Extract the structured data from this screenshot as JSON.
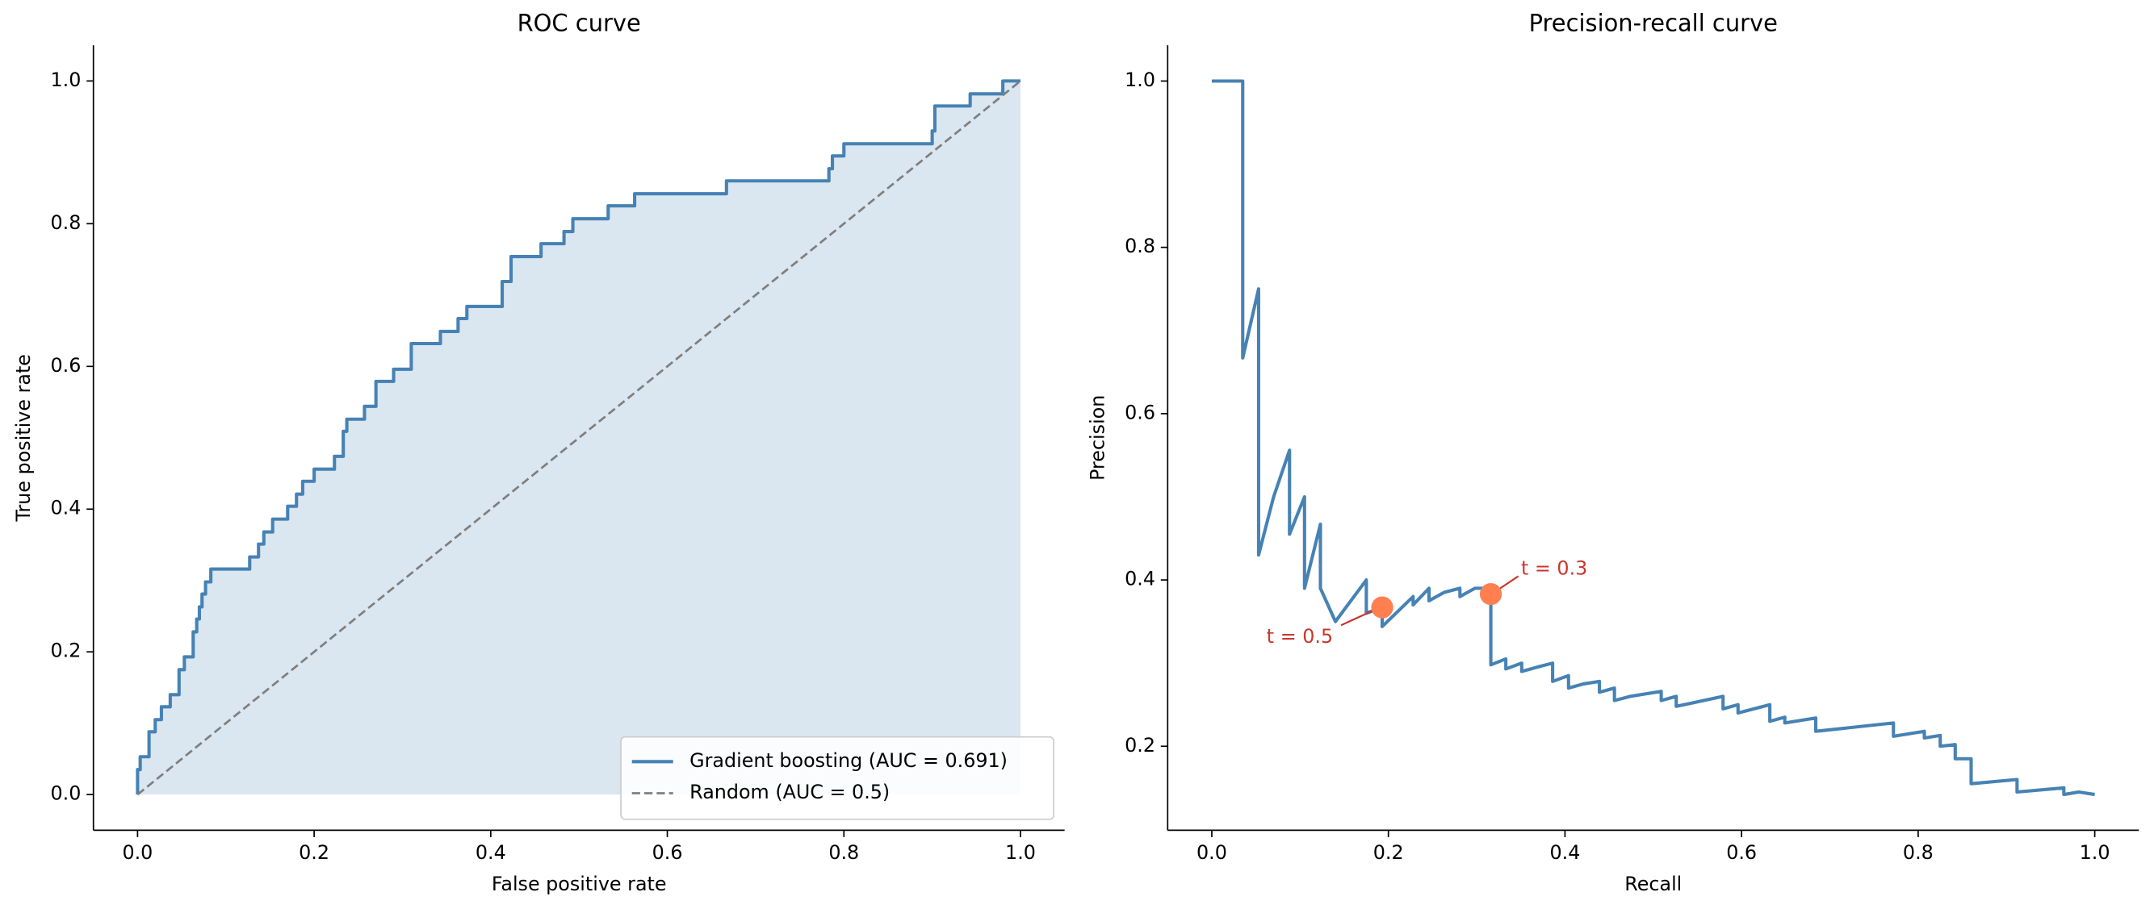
{
  "chart_data": [
    {
      "type": "line",
      "title": "ROC curve",
      "x_label": "False positive rate",
      "y_label": "True positive rate",
      "xlim": [
        -0.05,
        1.05
      ],
      "ylim": [
        -0.05,
        1.05
      ],
      "xticks": [
        {
          "value": 0,
          "label": "0.0"
        },
        0.2,
        0.4,
        0.6,
        0.8,
        {
          "value": 1,
          "label": "1.0"
        }
      ],
      "yticks": [
        {
          "value": 0,
          "label": "0.0"
        },
        0.2,
        0.4,
        0.6,
        0.8,
        {
          "value": 1,
          "label": "1.0"
        }
      ],
      "legend": "lower right",
      "series": [
        {
          "name": "Gradient boosting (AUC = 0.691)",
          "color": "#4682b4",
          "style": "solid",
          "fill": true,
          "x": [
            0,
            0,
            0.003,
            0.003,
            0.013,
            0.013,
            0.02,
            0.02,
            0.027,
            0.027,
            0.037,
            0.037,
            0.047,
            0.047,
            0.053,
            0.053,
            0.063,
            0.063,
            0.067,
            0.067,
            0.07,
            0.07,
            0.073,
            0.073,
            0.077,
            0.077,
            0.083,
            0.083,
            0.127,
            0.127,
            0.137,
            0.137,
            0.143,
            0.143,
            0.153,
            0.153,
            0.17,
            0.17,
            0.18,
            0.18,
            0.187,
            0.187,
            0.2,
            0.2,
            0.223,
            0.223,
            0.233,
            0.233,
            0.237,
            0.237,
            0.257,
            0.257,
            0.27,
            0.27,
            0.29,
            0.29,
            0.31,
            0.31,
            0.343,
            0.343,
            0.363,
            0.363,
            0.373,
            0.373,
            0.413,
            0.413,
            0.423,
            0.423,
            0.457,
            0.457,
            0.483,
            0.483,
            0.493,
            0.493,
            0.533,
            0.533,
            0.563,
            0.563,
            0.667,
            0.667,
            0.783,
            0.783,
            0.787,
            0.787,
            0.8,
            0.8,
            0.9,
            0.9,
            0.903,
            0.903,
            0.943,
            0.943,
            0.98,
            0.98,
            1
          ],
          "values": [
            0,
            0.035,
            0.035,
            0.053,
            0.053,
            0.088,
            0.088,
            0.105,
            0.105,
            0.123,
            0.123,
            0.14,
            0.14,
            0.175,
            0.175,
            0.193,
            0.193,
            0.228,
            0.228,
            0.246,
            0.246,
            0.263,
            0.263,
            0.281,
            0.281,
            0.298,
            0.298,
            0.316,
            0.316,
            0.333,
            0.333,
            0.351,
            0.351,
            0.368,
            0.368,
            0.386,
            0.386,
            0.404,
            0.404,
            0.421,
            0.421,
            0.439,
            0.439,
            0.456,
            0.456,
            0.474,
            0.474,
            0.509,
            0.509,
            0.526,
            0.526,
            0.544,
            0.544,
            0.579,
            0.579,
            0.596,
            0.596,
            0.632,
            0.632,
            0.649,
            0.649,
            0.667,
            0.667,
            0.684,
            0.684,
            0.719,
            0.719,
            0.754,
            0.754,
            0.772,
            0.772,
            0.789,
            0.789,
            0.807,
            0.807,
            0.825,
            0.825,
            0.842,
            0.842,
            0.86,
            0.86,
            0.877,
            0.877,
            0.895,
            0.895,
            0.912,
            0.912,
            0.93,
            0.93,
            0.965,
            0.965,
            0.982,
            0.982,
            1,
            1
          ]
        },
        {
          "name": "Random (AUC = 0.5)",
          "color": "#7f7f7f",
          "style": "dashed",
          "fill": false,
          "x": [
            0,
            1
          ],
          "values": [
            0,
            1
          ]
        }
      ]
    },
    {
      "type": "line",
      "title": "Precision-recall curve",
      "x_label": "Recall",
      "y_label": "Precision",
      "xlim": [
        -0.05,
        1.05
      ],
      "ylim": [
        0.099,
        1.043
      ],
      "xticks": [
        {
          "value": 0,
          "label": "0.0"
        },
        0.2,
        0.4,
        0.6,
        0.8,
        {
          "value": 1,
          "label": "1.0"
        }
      ],
      "yticks": [
        0.2,
        0.4,
        0.6,
        0.8,
        {
          "value": 1,
          "label": "1.0"
        }
      ],
      "series": [
        {
          "color": "#4682b4",
          "style": "solid",
          "fill": false,
          "x": [
            0,
            0.035,
            0.035,
            0.053,
            0.053,
            0.07,
            0.088,
            0.088,
            0.105,
            0.105,
            0.123,
            0.123,
            0.14,
            0.175,
            0.175,
            0.193,
            0.193,
            0.228,
            0.228,
            0.246,
            0.246,
            0.263,
            0.281,
            0.281,
            0.298,
            0.316,
            0.316,
            0.333,
            0.333,
            0.351,
            0.351,
            0.368,
            0.386,
            0.386,
            0.404,
            0.404,
            0.421,
            0.439,
            0.439,
            0.456,
            0.456,
            0.474,
            0.509,
            0.509,
            0.526,
            0.526,
            0.544,
            0.579,
            0.579,
            0.596,
            0.596,
            0.632,
            0.632,
            0.649,
            0.649,
            0.684,
            0.684,
            0.772,
            0.772,
            0.807,
            0.807,
            0.825,
            0.825,
            0.842,
            0.842,
            0.86,
            0.86,
            0.912,
            0.912,
            0.965,
            0.965,
            0.982,
            1
          ],
          "values": [
            1,
            1,
            0.667,
            0.75,
            0.43,
            0.5,
            0.556,
            0.455,
            0.5,
            0.39,
            0.467,
            0.39,
            0.35,
            0.4,
            0.36,
            0.367,
            0.344,
            0.38,
            0.37,
            0.39,
            0.375,
            0.385,
            0.39,
            0.38,
            0.39,
            0.39,
            0.298,
            0.305,
            0.293,
            0.3,
            0.29,
            0.295,
            0.3,
            0.278,
            0.285,
            0.27,
            0.275,
            0.278,
            0.265,
            0.27,
            0.255,
            0.26,
            0.266,
            0.255,
            0.26,
            0.248,
            0.252,
            0.26,
            0.245,
            0.25,
            0.24,
            0.25,
            0.23,
            0.235,
            0.228,
            0.234,
            0.218,
            0.228,
            0.212,
            0.218,
            0.21,
            0.213,
            0.2,
            0.202,
            0.185,
            0.185,
            0.155,
            0.16,
            0.145,
            0.15,
            0.142,
            0.145,
            0.142
          ]
        }
      ],
      "points": [
        {
          "label": "t = 0.5",
          "x": 0.193,
          "y": 0.367
        },
        {
          "label": "t = 0.3",
          "x": 0.316,
          "y": 0.383
        }
      ],
      "point_color": "#ff7f50",
      "annotation_color": "#c8372d"
    }
  ]
}
